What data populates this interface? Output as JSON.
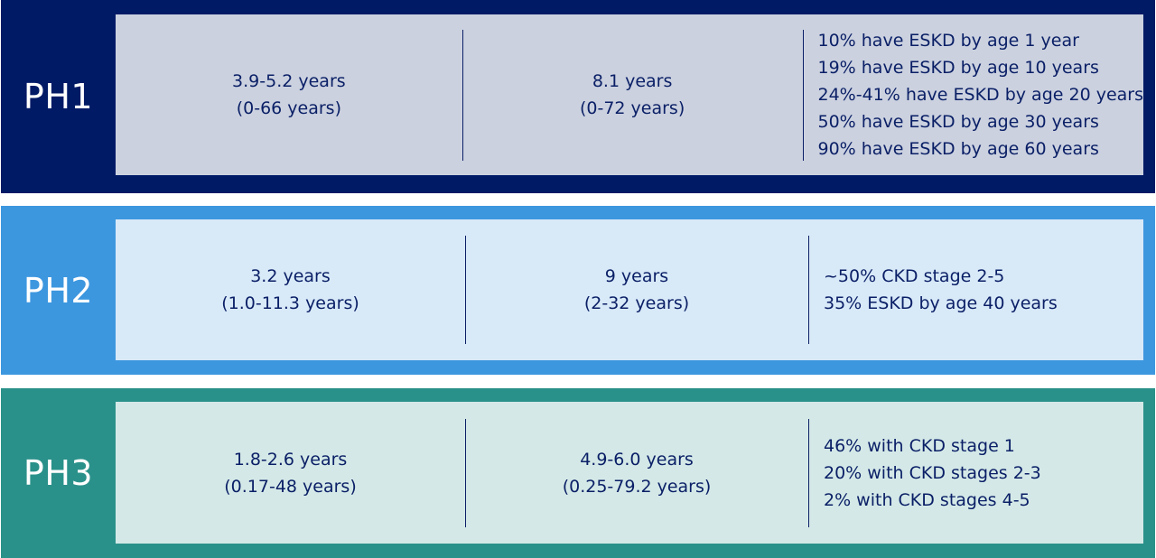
{
  "rows": [
    {
      "label": "PH1",
      "col1": [
        "3.9-5.2 years",
        "(0-66 years)"
      ],
      "col2": [
        "8.1 years",
        "(0-72 years)"
      ],
      "col3": [
        "10% have ESKD by age 1 year",
        "19% have ESKD by age 10 years",
        "24%-41% have ESKD by age 20 years",
        "50% have ESKD by age 30 years",
        "90% have ESKD by age 60 years"
      ]
    },
    {
      "label": "PH2",
      "col1": [
        "3.2 years",
        "(1.0-11.3 years)"
      ],
      "col2": [
        "9 years",
        "(2-32 years)"
      ],
      "col3": [
        "~50% CKD stage 2-5",
        "35% ESKD by age 40 years"
      ]
    },
    {
      "label": "PH3",
      "col1": [
        "1.8-2.6 years",
        "(0.17-48 years)"
      ],
      "col2": [
        "4.9-6.0 years",
        "(0.25-79.2 years)"
      ],
      "col3": [
        "46% with CKD stage 1",
        "20% with CKD stages 2-3",
        "2% with CKD stages 4-5"
      ]
    }
  ],
  "colors": {
    "ph1": "#001a66",
    "ph2": "#3d97df",
    "ph3": "#2a918a",
    "text": "#0a1f66"
  }
}
